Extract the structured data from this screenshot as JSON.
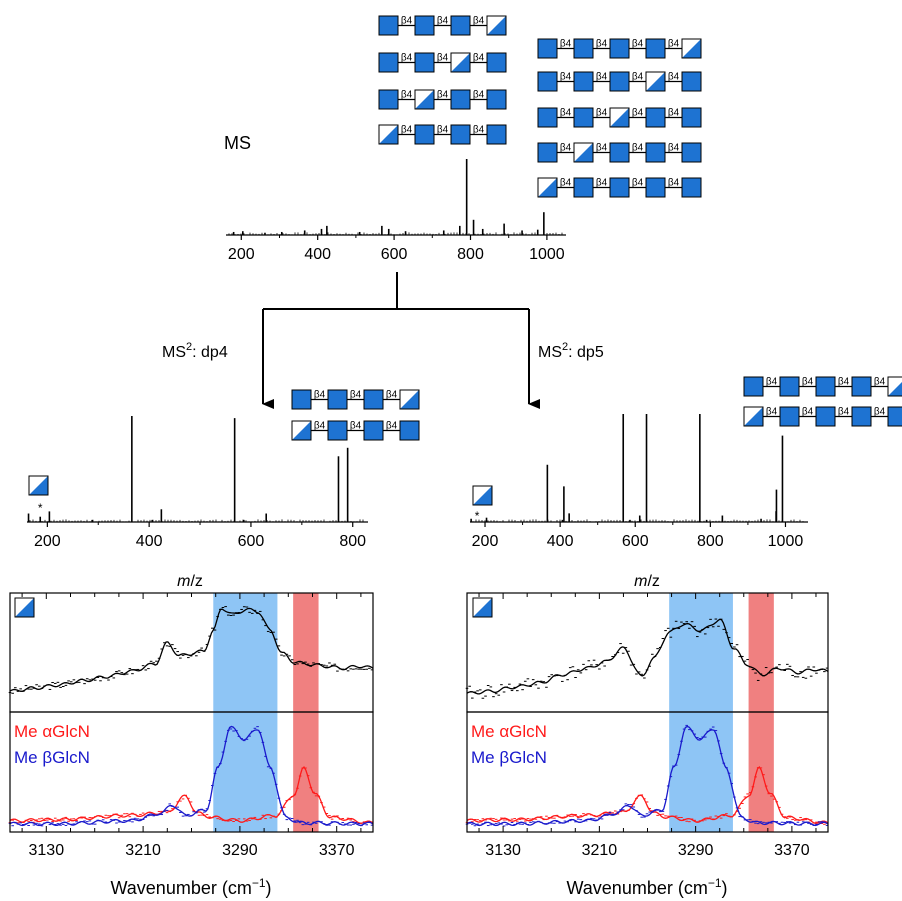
{
  "colors": {
    "glyph_blue": "#1e73d2",
    "alpha_red": "#ff1a1a",
    "beta_blue": "#1a1acc",
    "alpha_band": "#f08080",
    "beta_band": "#8ec5f5",
    "trace": "#000000"
  },
  "labels": {
    "ms": "MS",
    "ms2_prefix": "MS",
    "ms2_sup": "2",
    "ms2_dp4": ": dp4",
    "ms2_dp5": ": dp5",
    "mz_italic": "m",
    "mz_rest": "/z",
    "wavenumber": "Wavenumber (cm",
    "wavenumber_sup": "−1",
    "wavenumber_close": ")",
    "linkage": "β4",
    "legend_alpha": "Me αGlcN",
    "legend_beta": "Me βGlcN",
    "asterisk": "*"
  },
  "chart_data": [
    {
      "id": "ms_top",
      "type": "bar",
      "title": "MS",
      "xlabel": "",
      "xlim": [
        160,
        1050
      ],
      "xticks": [
        "200",
        "400",
        "600",
        "800",
        "1000"
      ],
      "peaks": [
        [
          180,
          0.04
        ],
        [
          204,
          0.05
        ],
        [
          262,
          0.03
        ],
        [
          306,
          0.04
        ],
        [
          366,
          0.06
        ],
        [
          410,
          0.08
        ],
        [
          424,
          0.12
        ],
        [
          510,
          0.04
        ],
        [
          568,
          0.12
        ],
        [
          586,
          0.08
        ],
        [
          630,
          0.05
        ],
        [
          730,
          0.06
        ],
        [
          772,
          0.12
        ],
        [
          790,
          1.0
        ],
        [
          808,
          0.2
        ],
        [
          832,
          0.08
        ],
        [
          888,
          0.15
        ],
        [
          935,
          0.06
        ],
        [
          976,
          0.07
        ],
        [
          992,
          0.3
        ]
      ]
    },
    {
      "id": "ms2_dp4",
      "type": "bar",
      "title": "MS2: dp4",
      "xlabel": "m/z",
      "xlim": [
        160,
        830
      ],
      "xticks": [
        "200",
        "400",
        "600",
        "800"
      ],
      "peaks": [
        [
          163,
          0.08
        ],
        [
          186,
          0.05
        ],
        [
          204,
          0.1
        ],
        [
          288,
          0.02
        ],
        [
          366,
          1.0
        ],
        [
          406,
          0.02
        ],
        [
          424,
          0.12
        ],
        [
          568,
          0.98
        ],
        [
          586,
          0.02
        ],
        [
          630,
          0.08
        ],
        [
          772,
          0.62
        ],
        [
          790,
          0.7
        ]
      ]
    },
    {
      "id": "ms2_dp5",
      "type": "bar",
      "title": "MS2: dp5",
      "xlabel": "m/z",
      "xlim": [
        160,
        1060
      ],
      "xticks": [
        "200",
        "400",
        "600",
        "800",
        "1000"
      ],
      "peaks": [
        [
          163,
          0.03
        ],
        [
          204,
          0.04
        ],
        [
          366,
          0.53
        ],
        [
          406,
          0.02
        ],
        [
          410,
          0.33
        ],
        [
          424,
          0.08
        ],
        [
          568,
          1.0
        ],
        [
          586,
          0.02
        ],
        [
          612,
          0.06
        ],
        [
          630,
          1.0
        ],
        [
          772,
          1.0
        ],
        [
          790,
          0.02
        ],
        [
          832,
          0.06
        ],
        [
          935,
          0.03
        ],
        [
          975,
          0.1
        ],
        [
          976,
          0.3
        ],
        [
          992,
          0.8
        ]
      ]
    },
    {
      "id": "ir_dp4",
      "type": "line",
      "xlabel": "Wavenumber (cm−1)",
      "xlim": [
        3100,
        3400
      ],
      "xticks": [
        "3130",
        "3210",
        "3290",
        "3370"
      ],
      "beta_band": [
        3268,
        3321
      ],
      "alpha_band": [
        3334,
        3355
      ],
      "sample": [
        [
          3100,
          0.14
        ],
        [
          3120,
          0.17
        ],
        [
          3140,
          0.2
        ],
        [
          3160,
          0.24
        ],
        [
          3180,
          0.28
        ],
        [
          3200,
          0.33
        ],
        [
          3220,
          0.4
        ],
        [
          3230,
          0.6
        ],
        [
          3240,
          0.48
        ],
        [
          3260,
          0.52
        ],
        [
          3268,
          0.72
        ],
        [
          3275,
          0.93
        ],
        [
          3285,
          0.87
        ],
        [
          3295,
          0.92
        ],
        [
          3305,
          0.9
        ],
        [
          3315,
          0.72
        ],
        [
          3325,
          0.5
        ],
        [
          3335,
          0.42
        ],
        [
          3345,
          0.4
        ],
        [
          3360,
          0.38
        ],
        [
          3375,
          0.36
        ],
        [
          3390,
          0.38
        ],
        [
          3400,
          0.36
        ]
      ],
      "series": [
        {
          "name": "Me αGlcN",
          "points": [
            [
              3100,
              0.05
            ],
            [
              3140,
              0.06
            ],
            [
              3200,
              0.1
            ],
            [
              3230,
              0.13
            ],
            [
              3245,
              0.28
            ],
            [
              3255,
              0.12
            ],
            [
              3268,
              0.08
            ],
            [
              3290,
              0.05
            ],
            [
              3320,
              0.1
            ],
            [
              3335,
              0.3
            ],
            [
              3343,
              0.55
            ],
            [
              3352,
              0.3
            ],
            [
              3365,
              0.08
            ],
            [
              3400,
              0.03
            ]
          ]
        },
        {
          "name": "Me βGlcN",
          "points": [
            [
              3100,
              0.02
            ],
            [
              3140,
              0.02
            ],
            [
              3200,
              0.05
            ],
            [
              3225,
              0.12
            ],
            [
              3234,
              0.2
            ],
            [
              3245,
              0.1
            ],
            [
              3262,
              0.15
            ],
            [
              3272,
              0.55
            ],
            [
              3282,
              0.93
            ],
            [
              3294,
              0.82
            ],
            [
              3305,
              0.92
            ],
            [
              3315,
              0.55
            ],
            [
              3328,
              0.08
            ],
            [
              3340,
              0.03
            ],
            [
              3400,
              0.02
            ]
          ]
        }
      ]
    },
    {
      "id": "ir_dp5",
      "type": "line",
      "xlabel": "Wavenumber (cm−1)",
      "xlim": [
        3100,
        3400
      ],
      "xticks": [
        "3130",
        "3210",
        "3290",
        "3370"
      ],
      "beta_band": [
        3268,
        3321
      ],
      "alpha_band": [
        3334,
        3355
      ],
      "sample": [
        [
          3100,
          0.12
        ],
        [
          3120,
          0.14
        ],
        [
          3140,
          0.18
        ],
        [
          3160,
          0.22
        ],
        [
          3180,
          0.3
        ],
        [
          3200,
          0.36
        ],
        [
          3215,
          0.42
        ],
        [
          3230,
          0.55
        ],
        [
          3245,
          0.28
        ],
        [
          3255,
          0.45
        ],
        [
          3268,
          0.7
        ],
        [
          3280,
          0.78
        ],
        [
          3295,
          0.72
        ],
        [
          3310,
          0.82
        ],
        [
          3322,
          0.55
        ],
        [
          3332,
          0.4
        ],
        [
          3345,
          0.3
        ],
        [
          3360,
          0.36
        ],
        [
          3375,
          0.32
        ],
        [
          3390,
          0.35
        ],
        [
          3400,
          0.33
        ]
      ],
      "series": [
        {
          "name": "Me αGlcN",
          "points": [
            [
              3100,
              0.05
            ],
            [
              3140,
              0.06
            ],
            [
              3200,
              0.1
            ],
            [
              3230,
              0.13
            ],
            [
              3245,
              0.28
            ],
            [
              3255,
              0.12
            ],
            [
              3268,
              0.08
            ],
            [
              3290,
              0.05
            ],
            [
              3320,
              0.1
            ],
            [
              3335,
              0.3
            ],
            [
              3343,
              0.55
            ],
            [
              3352,
              0.3
            ],
            [
              3365,
              0.08
            ],
            [
              3400,
              0.03
            ]
          ]
        },
        {
          "name": "Me βGlcN",
          "points": [
            [
              3100,
              0.02
            ],
            [
              3140,
              0.02
            ],
            [
              3200,
              0.05
            ],
            [
              3225,
              0.12
            ],
            [
              3234,
              0.2
            ],
            [
              3245,
              0.1
            ],
            [
              3262,
              0.15
            ],
            [
              3272,
              0.55
            ],
            [
              3282,
              0.93
            ],
            [
              3294,
              0.82
            ],
            [
              3305,
              0.92
            ],
            [
              3315,
              0.55
            ],
            [
              3328,
              0.08
            ],
            [
              3340,
              0.03
            ],
            [
              3400,
              0.02
            ]
          ]
        }
      ]
    }
  ]
}
